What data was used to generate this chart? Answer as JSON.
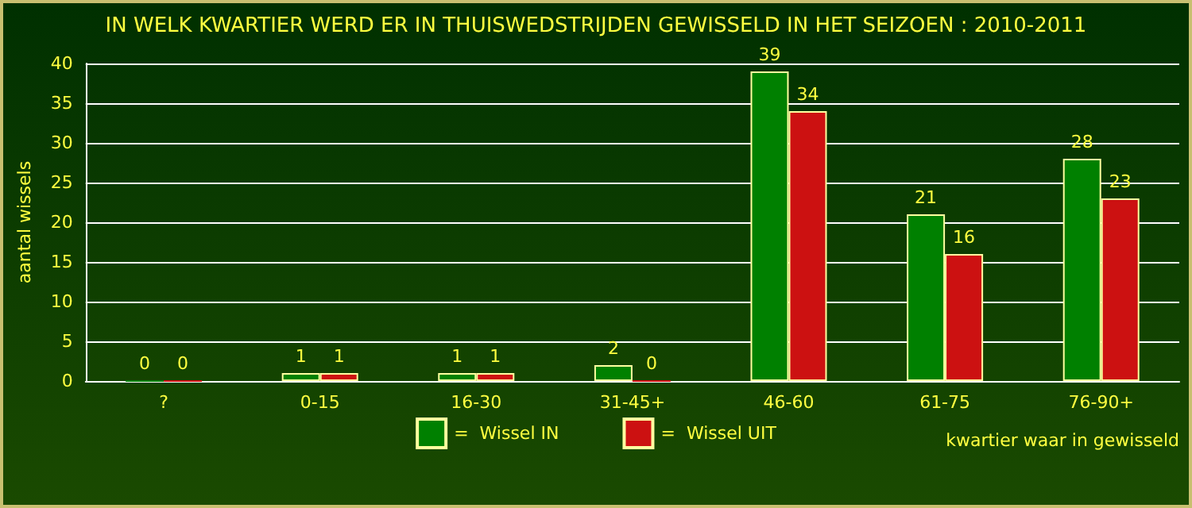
{
  "chart_data": {
    "type": "bar",
    "title": "IN WELK KWARTIER WERD ER IN THUISWEDSTRIJDEN GEWISSELD IN HET SEIZOEN : 2010-2011",
    "xlabel": "kwartier waar in gewisseld",
    "ylabel": "aantal wissels",
    "categories": [
      "?",
      "0-15",
      "16-30",
      "31-45+",
      "46-60",
      "61-75",
      "76-90+"
    ],
    "series": [
      {
        "name": "=  Wissel IN",
        "color": "#008000",
        "values": [
          0,
          1,
          1,
          2,
          39,
          21,
          28
        ]
      },
      {
        "name": "=  Wissel UIT",
        "color": "#cc1111",
        "values": [
          0,
          1,
          1,
          0,
          34,
          16,
          23
        ]
      }
    ],
    "ylim": [
      0,
      40
    ],
    "yticks": [
      0,
      5,
      10,
      15,
      20,
      25,
      30,
      35,
      40
    ],
    "grid": "y",
    "legend": "bottom",
    "data_labels": true
  }
}
